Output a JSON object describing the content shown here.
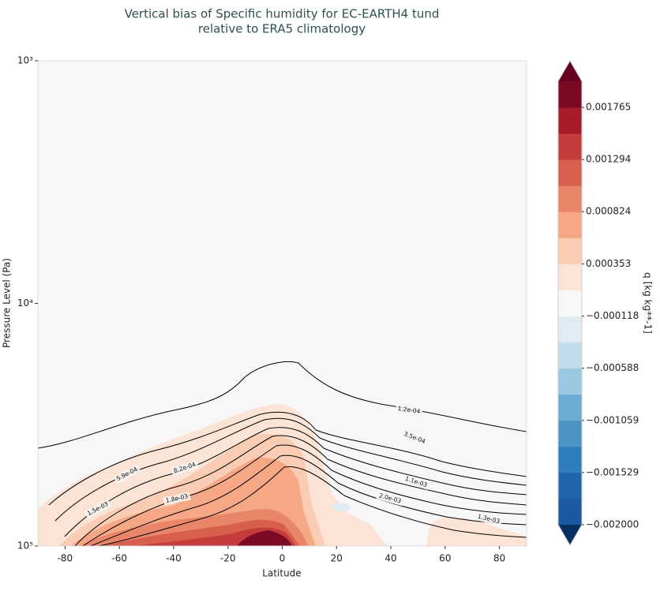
{
  "chart_data": {
    "type": "contourf",
    "title": "Vertical bias of Specific humidity for EC-EARTH4 tund",
    "subtitle": "relative to ERA5 climatology",
    "x_label": "Latitude",
    "y_label": "Pressure Level (Pa)",
    "xlim": [
      -90,
      90
    ],
    "xticks": [
      -80,
      -60,
      -40,
      -20,
      0,
      20,
      40,
      60,
      80
    ],
    "ylim": [
      1000,
      100000
    ],
    "y_log": true,
    "y_inverted": true,
    "yticks": [
      {
        "value": 1000,
        "label": "10³"
      },
      {
        "value": 10000,
        "label": "10⁴"
      },
      {
        "value": 100000,
        "label": "10⁵"
      }
    ],
    "contour_labels": [
      "1.2e-04",
      "3.5e-04",
      "5.9e-04",
      "8.2e-04",
      "1.1e-03",
      "1.5e-03",
      "1.8e-03",
      "2.0e-03",
      "1.3e-03"
    ],
    "colorbar": {
      "label": "q [kg kg**-1]",
      "clim": [
        -0.002,
        0.002
      ],
      "ticks": [
        0.001765,
        0.001294,
        0.000824,
        0.000353,
        {
          "value": -0.000118,
          "label": "−0.000118"
        },
        {
          "value": -0.000588,
          "label": "−0.000588"
        },
        {
          "value": -0.001059,
          "label": "−0.001059"
        },
        {
          "value": -0.001529,
          "label": "−0.001529"
        },
        {
          "value": -0.002,
          "label": "−0.002000"
        }
      ],
      "colors": [
        "#1a5aa0",
        "#2166ac",
        "#2f7dbb",
        "#4a95c6",
        "#6aacd2",
        "#9ac8e0",
        "#c3dcec",
        "#e0ecf4",
        "#f7f7f7",
        "#fbe4d6",
        "#fbccb4",
        "#f6a886",
        "#e9866a",
        "#d6604d",
        "#c43c3c",
        "#a91a2b",
        "#7d0a24"
      ],
      "extend_colors": [
        "#053061",
        "#67001f"
      ]
    }
  }
}
